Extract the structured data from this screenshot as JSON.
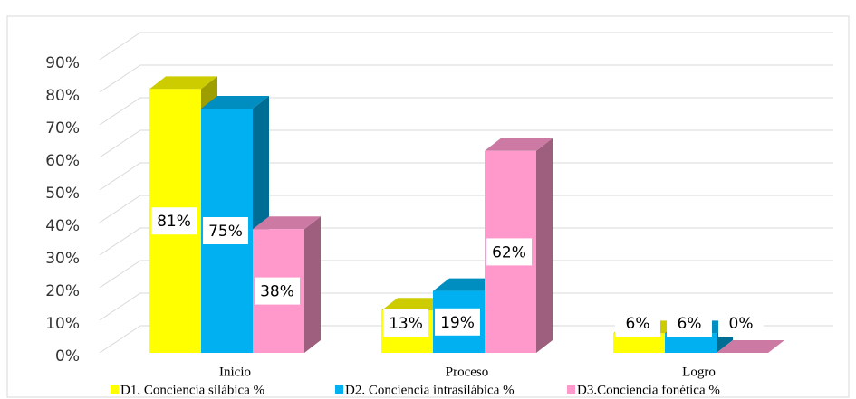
{
  "chart_data": {
    "type": "bar3d",
    "categories": [
      "Inicio",
      "Proceso",
      "Logro"
    ],
    "series": [
      {
        "name": "D1. Conciencia silábica %",
        "color": "#ffff00",
        "values": [
          81,
          13,
          6
        ],
        "value_labels": [
          "81%",
          "13%",
          "6%"
        ]
      },
      {
        "name": "D2. Conciencia intrasilábica %",
        "color": "#00b0f0",
        "values": [
          75,
          19,
          6
        ],
        "value_labels": [
          "75%",
          "19%",
          "6%"
        ]
      },
      {
        "name": "D3.Conciencia fonética %",
        "color": "#ff99cc",
        "values": [
          38,
          62,
          0
        ],
        "value_labels": [
          "38%",
          "62%",
          "0%"
        ]
      }
    ],
    "ylim": [
      0,
      90
    ],
    "yticks": [
      {
        "value": 0,
        "label": "0%"
      },
      {
        "value": 10,
        "label": "10%"
      },
      {
        "value": 20,
        "label": "20%"
      },
      {
        "value": 30,
        "label": "30%"
      },
      {
        "value": 40,
        "label": "40%"
      },
      {
        "value": 50,
        "label": "50%"
      },
      {
        "value": 60,
        "label": "60%"
      },
      {
        "value": 70,
        "label": "70%"
      },
      {
        "value": 80,
        "label": "80%"
      },
      {
        "value": 90,
        "label": "90%"
      }
    ],
    "grid": true,
    "legend": "bottom"
  }
}
